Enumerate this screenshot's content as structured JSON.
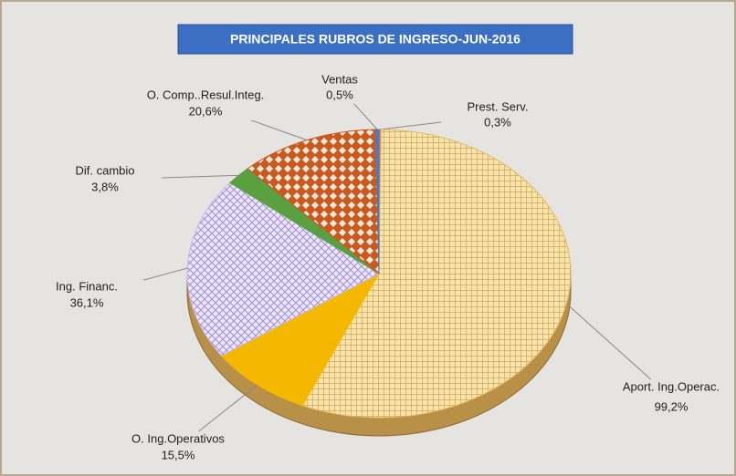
{
  "chart_data": {
    "type": "pie",
    "title": "PRINCIPALES RUBROS DE INGRESO-JUN-2016",
    "categories": [
      "Prest. Serv.",
      "Aport. Ing.Operac.",
      "O. Ing.Operativos",
      "Ing. Financ.",
      "Dif. cambio",
      "O. Comp..Resul.Integ.",
      "Ventas"
    ],
    "values": [
      0.3,
      99.2,
      15.5,
      36.1,
      3.8,
      20.6,
      0.5
    ],
    "value_labels": [
      "0,3%",
      "99,2%",
      "15,5%",
      "36,1%",
      "3,8%",
      "20,6%",
      "0,5%"
    ],
    "colors": [
      "#e07050",
      "#e8b860",
      "#f5b800",
      "#c8b8e8",
      "#5aa040",
      "#c85a20",
      "#4a7ac0"
    ]
  }
}
